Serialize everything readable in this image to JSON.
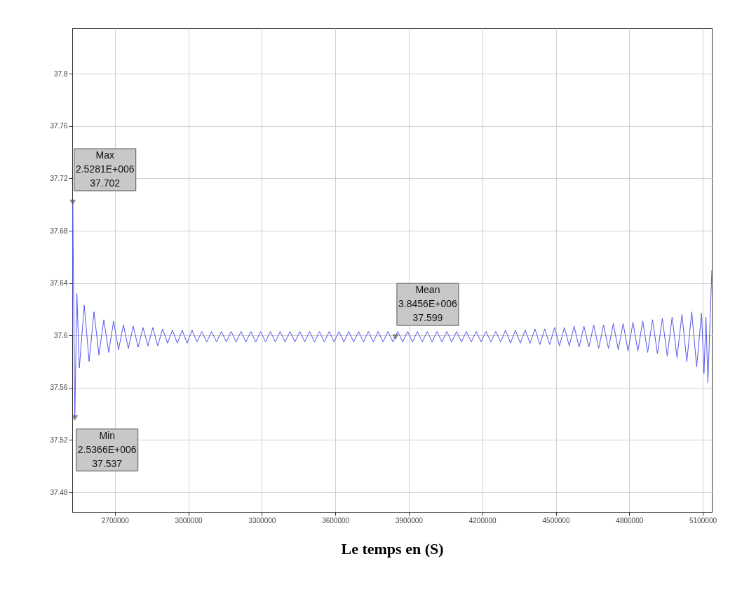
{
  "chart_data": {
    "type": "line",
    "xlabel": "Le temps en (S)",
    "xlim": [
      2526000,
      5137000
    ],
    "xticks": [
      2700000,
      3000000,
      3300000,
      3600000,
      3900000,
      4200000,
      4500000,
      4800000,
      5100000
    ],
    "ylim": [
      37.465,
      37.835
    ],
    "yticks": [
      37.48,
      37.52,
      37.56,
      37.6,
      37.64,
      37.68,
      37.72,
      37.76,
      37.8
    ],
    "grid": true,
    "marker": "none",
    "line_style": "solid",
    "series": [
      {
        "color": "#5555ee",
        "x": [
          2526000,
          2528100,
          2536600,
          2545000,
          2555000,
          2575000,
          2595000,
          2615000,
          2635000,
          2655000,
          2675000,
          2695000,
          2715000,
          2735000,
          2755000,
          2775000,
          2795000,
          2815000,
          2835000,
          2855000,
          2875000,
          2895000,
          2915000,
          2935000,
          2955000,
          2975000,
          2995000,
          3015000,
          3035000,
          3055000,
          3075000,
          3095000,
          3115000,
          3135000,
          3155000,
          3175000,
          3195000,
          3215000,
          3235000,
          3255000,
          3275000,
          3295000,
          3315000,
          3335000,
          3355000,
          3375000,
          3395000,
          3415000,
          3435000,
          3455000,
          3475000,
          3495000,
          3515000,
          3535000,
          3555000,
          3575000,
          3595000,
          3615000,
          3635000,
          3655000,
          3675000,
          3695000,
          3715000,
          3735000,
          3755000,
          3775000,
          3795000,
          3815000,
          3835000,
          3855000,
          3875000,
          3895000,
          3915000,
          3935000,
          3955000,
          3975000,
          3995000,
          4015000,
          4035000,
          4055000,
          4075000,
          4095000,
          4115000,
          4135000,
          4155000,
          4175000,
          4195000,
          4215000,
          4235000,
          4255000,
          4275000,
          4295000,
          4315000,
          4335000,
          4355000,
          4375000,
          4395000,
          4415000,
          4435000,
          4455000,
          4475000,
          4495000,
          4515000,
          4535000,
          4555000,
          4575000,
          4595000,
          4615000,
          4635000,
          4655000,
          4675000,
          4695000,
          4715000,
          4735000,
          4755000,
          4775000,
          4795000,
          4815000,
          4835000,
          4855000,
          4875000,
          4895000,
          4915000,
          4935000,
          4955000,
          4975000,
          4995000,
          5015000,
          5035000,
          5055000,
          5075000,
          5095000,
          5105000,
          5113000,
          5121000,
          5137000
        ],
        "values": [
          37.6,
          37.702,
          37.537,
          37.632,
          37.575,
          37.623,
          37.58,
          37.618,
          37.585,
          37.612,
          37.587,
          37.611,
          37.589,
          37.608,
          37.59,
          37.607,
          37.591,
          37.606,
          37.592,
          37.606,
          37.592,
          37.605,
          37.594,
          37.604,
          37.594,
          37.604,
          37.594,
          37.604,
          37.595,
          37.603,
          37.595,
          37.603,
          37.595,
          37.603,
          37.595,
          37.603,
          37.595,
          37.603,
          37.595,
          37.603,
          37.595,
          37.603,
          37.595,
          37.603,
          37.595,
          37.603,
          37.595,
          37.603,
          37.595,
          37.603,
          37.595,
          37.603,
          37.595,
          37.603,
          37.595,
          37.603,
          37.595,
          37.603,
          37.595,
          37.603,
          37.595,
          37.603,
          37.595,
          37.603,
          37.595,
          37.603,
          37.595,
          37.603,
          37.595,
          37.603,
          37.595,
          37.603,
          37.595,
          37.603,
          37.595,
          37.603,
          37.595,
          37.603,
          37.595,
          37.603,
          37.595,
          37.603,
          37.595,
          37.603,
          37.595,
          37.603,
          37.595,
          37.603,
          37.595,
          37.603,
          37.595,
          37.604,
          37.594,
          37.604,
          37.594,
          37.604,
          37.594,
          37.605,
          37.593,
          37.605,
          37.593,
          37.606,
          37.592,
          37.606,
          37.592,
          37.607,
          37.591,
          37.607,
          37.591,
          37.608,
          37.59,
          37.608,
          37.59,
          37.609,
          37.589,
          37.609,
          37.588,
          37.61,
          37.588,
          37.611,
          37.587,
          37.612,
          37.586,
          37.613,
          37.584,
          37.614,
          37.583,
          37.616,
          37.58,
          37.618,
          37.576,
          37.617,
          37.571,
          37.614,
          37.564,
          37.65
        ]
      }
    ],
    "annotations": [
      {
        "text": "Max\n2.5281E+006\n37.702",
        "x": 2528100,
        "y": 37.702
      },
      {
        "text": "Min\n2.5366E+006\n37.537",
        "x": 2536600,
        "y": 37.537
      },
      {
        "text": "Mean\n3.8456E+006\n37.599",
        "x": 3845600,
        "y": 37.599
      }
    ]
  }
}
